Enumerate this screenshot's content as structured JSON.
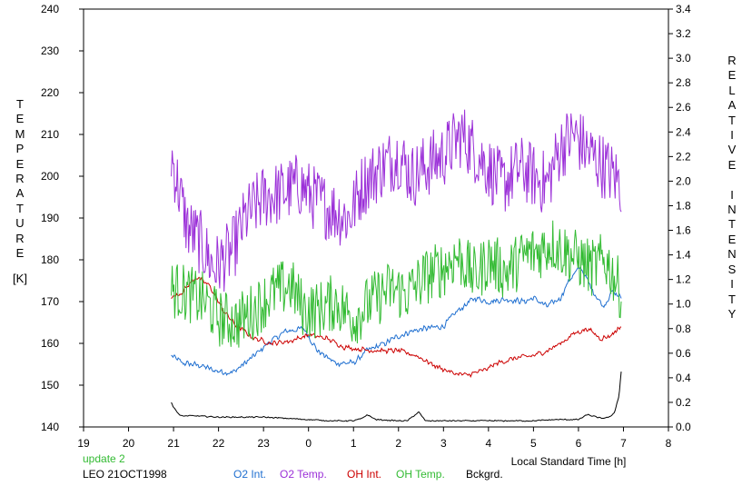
{
  "chart_data": {
    "type": "line",
    "left_axis_label": "TEMPERATURE",
    "left_axis_unit": "[K]",
    "right_axis_label": "RELATIVE INTENSITY",
    "xlabel": "Local Standard Time [h]",
    "x_tick_labels": [
      "19",
      "20",
      "21",
      "22",
      "23",
      "0",
      "1",
      "2",
      "3",
      "4",
      "5",
      "6",
      "7",
      "8"
    ],
    "xlim": [
      19,
      32
    ],
    "y_left_ticks": [
      140,
      150,
      160,
      170,
      180,
      190,
      200,
      210,
      220,
      230,
      240
    ],
    "y_left_lim": [
      140,
      240
    ],
    "y_right_ticks": [
      "0.0",
      "0.2",
      "0.4",
      "0.6",
      "0.8",
      "1.0",
      "1.2",
      "1.4",
      "1.6",
      "1.8",
      "2.0",
      "2.2",
      "2.4",
      "2.6",
      "2.8",
      "3.0",
      "3.2",
      "3.4"
    ],
    "y_right_lim": [
      0,
      3.4
    ],
    "grid": false,
    "legend_position": "bottom",
    "series": [
      {
        "name": "O2 Int.",
        "axis": "right",
        "color": "#1f6fd0",
        "noise": 0.03,
        "x": [
          20.95,
          21.2,
          21.6,
          21.9,
          22.3,
          22.7,
          23.1,
          23.5,
          23.9,
          24.2,
          24.6,
          25.0,
          25.3,
          25.7,
          26.0,
          26.3,
          26.6,
          27.0,
          27.3,
          27.7,
          28.0,
          28.4,
          28.8,
          29.0,
          29.3,
          29.6,
          29.8,
          30.05,
          30.3,
          30.55,
          30.75,
          30.95
        ],
        "y": [
          0.58,
          0.52,
          0.5,
          0.46,
          0.44,
          0.55,
          0.68,
          0.78,
          0.8,
          0.62,
          0.52,
          0.52,
          0.62,
          0.68,
          0.74,
          0.78,
          0.8,
          0.82,
          0.94,
          1.05,
          1.02,
          1.04,
          1.02,
          1.05,
          0.98,
          1.05,
          1.2,
          1.3,
          1.12,
          0.98,
          1.1,
          1.05
        ]
      },
      {
        "name": "O2 Temp.",
        "axis": "left",
        "color": "#9b30d8",
        "noise": 8,
        "x": [
          20.95,
          21.3,
          21.6,
          21.9,
          22.3,
          22.6,
          23.0,
          23.4,
          23.8,
          24.1,
          24.5,
          24.9,
          25.2,
          25.6,
          26.0,
          26.3,
          26.7,
          27.0,
          27.4,
          27.7,
          28.0,
          28.3,
          28.7,
          29.0,
          29.3,
          29.6,
          29.9,
          30.2,
          30.5,
          30.8,
          30.95
        ],
        "y": [
          205,
          188,
          184,
          178,
          182,
          190,
          195,
          196,
          198,
          195,
          192,
          190,
          198,
          202,
          205,
          200,
          203,
          205,
          210,
          206,
          202,
          198,
          202,
          200,
          198,
          207,
          210,
          206,
          203,
          200,
          198
        ]
      },
      {
        "name": "OH Int.",
        "axis": "right",
        "color": "#cc0000",
        "noise": 0.025,
        "x": [
          20.95,
          21.2,
          21.5,
          21.8,
          22.1,
          22.4,
          22.8,
          23.2,
          23.6,
          24.0,
          24.4,
          24.8,
          25.2,
          25.6,
          26.0,
          26.4,
          26.8,
          27.2,
          27.5,
          27.9,
          28.2,
          28.6,
          29.0,
          29.3,
          29.6,
          29.9,
          30.2,
          30.5,
          30.7,
          30.95
        ],
        "y": [
          1.05,
          1.1,
          1.22,
          1.15,
          0.95,
          0.82,
          0.72,
          0.68,
          0.7,
          0.75,
          0.72,
          0.65,
          0.63,
          0.62,
          0.62,
          0.58,
          0.5,
          0.44,
          0.42,
          0.46,
          0.52,
          0.56,
          0.58,
          0.62,
          0.68,
          0.76,
          0.8,
          0.72,
          0.74,
          0.82
        ]
      },
      {
        "name": "OH Temp.",
        "axis": "left",
        "color": "#33bb33",
        "noise": 7,
        "x": [
          20.95,
          21.3,
          21.7,
          22.0,
          22.4,
          22.8,
          23.2,
          23.6,
          23.9,
          24.2,
          24.6,
          25.0,
          25.4,
          25.8,
          26.2,
          26.6,
          27.0,
          27.3,
          27.7,
          28.0,
          28.4,
          28.8,
          29.1,
          29.4,
          29.7,
          30.0,
          30.3,
          30.6,
          30.8,
          30.95
        ],
        "y": [
          173,
          172,
          170,
          166,
          165,
          168,
          172,
          174,
          168,
          168,
          170,
          166,
          170,
          173,
          172,
          176,
          178,
          181,
          176,
          180,
          177,
          181,
          182,
          184,
          182,
          180,
          178,
          180,
          176,
          172
        ]
      },
      {
        "name": "Bckgrd.",
        "axis": "right",
        "color": "#000000",
        "noise": 0.006,
        "x": [
          20.95,
          21.0,
          21.15,
          21.5,
          22.0,
          22.5,
          23.0,
          23.5,
          24.0,
          24.5,
          25.0,
          25.2,
          25.3,
          25.5,
          26.0,
          26.2,
          26.3,
          26.45,
          26.6,
          27.0,
          27.5,
          28.0,
          28.5,
          29.0,
          29.5,
          30.0,
          30.2,
          30.5,
          30.7,
          30.8,
          30.9,
          30.95
        ],
        "y": [
          0.2,
          0.16,
          0.09,
          0.09,
          0.08,
          0.08,
          0.08,
          0.07,
          0.06,
          0.05,
          0.05,
          0.07,
          0.1,
          0.06,
          0.05,
          0.05,
          0.08,
          0.12,
          0.05,
          0.05,
          0.05,
          0.05,
          0.05,
          0.05,
          0.06,
          0.06,
          0.1,
          0.07,
          0.08,
          0.12,
          0.25,
          0.45
        ]
      }
    ]
  },
  "footer": {
    "update_label": "update 2",
    "station_label": "LEO 21OCT1998"
  },
  "colors": {
    "o2_int": "#1f6fd0",
    "o2_temp": "#9b30d8",
    "oh_int": "#cc0000",
    "oh_temp": "#33bb33",
    "bckgrd": "#000000",
    "update_text": "#33bb33"
  }
}
